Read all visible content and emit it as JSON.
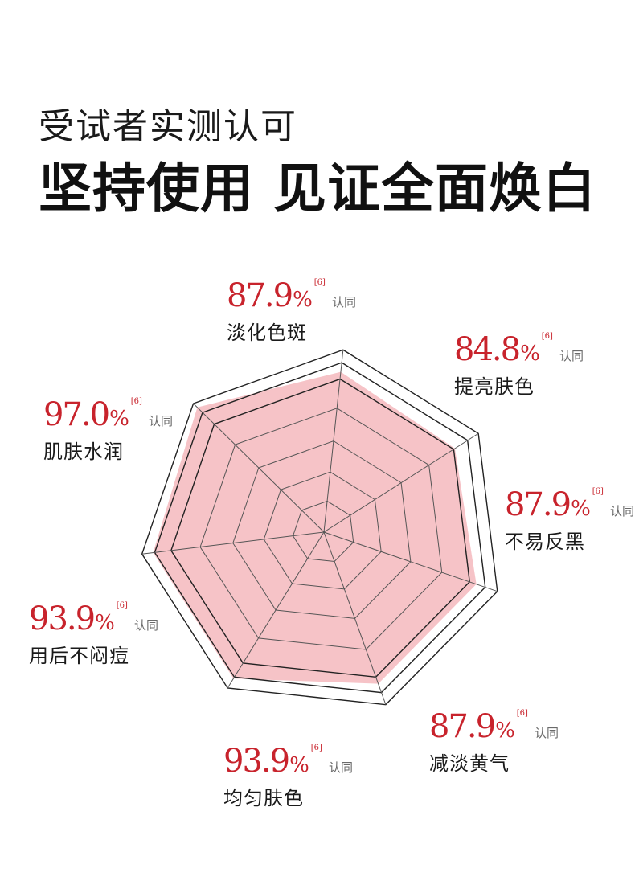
{
  "header": {
    "subtitle": "受试者实测认可",
    "title": "坚持使用 见证全面焕白"
  },
  "colors": {
    "accent": "#c8232c",
    "fill": "#f4b9bd",
    "grid": "#333333",
    "text": "#1a1a1a"
  },
  "chart_data": {
    "type": "radar",
    "title": "",
    "range": [
      0,
      100
    ],
    "unit": "%",
    "ref_mark": "[6]",
    "agree_text": "认同",
    "categories": [
      "淡化色斑",
      "提亮肤色",
      "不易反黑",
      "减淡黄气",
      "均匀肤色",
      "用后不闷痘",
      "肌肤水润"
    ],
    "values": [
      87.9,
      84.8,
      87.9,
      87.9,
      93.9,
      93.9,
      97.0
    ],
    "value_labels": [
      "87.9",
      "84.8",
      "87.9",
      "87.9",
      "93.9",
      "93.9",
      "97.0"
    ],
    "grid": true
  }
}
